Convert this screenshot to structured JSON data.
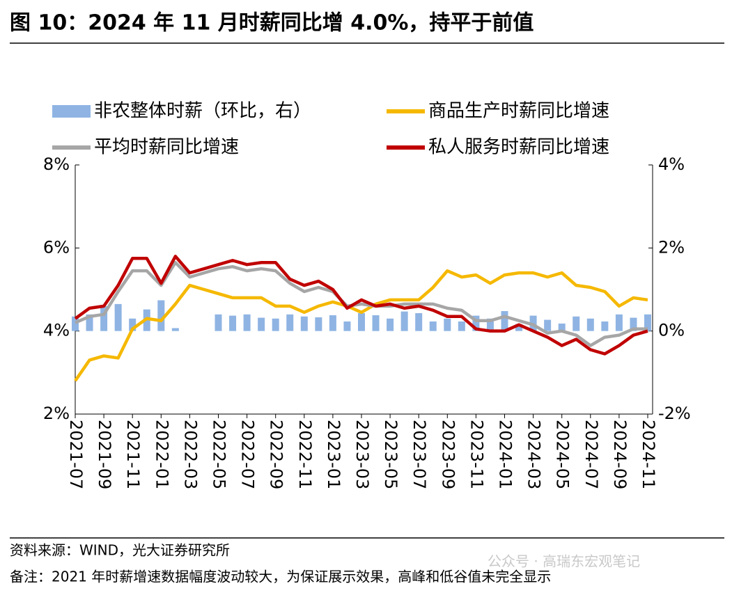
{
  "chart_data": {
    "type": "bar_line",
    "title": "图 10：2024 年 11 月时薪同比增 4.0%，持平于前值",
    "source": "资料来源：WIND，光大证券研究所",
    "note": "备注：2021 年时薪增速数据幅度波动较大，为保证展示效果，高峰和低谷值未完全显示",
    "watermark": "公众号 · 高瑞东宏观笔记",
    "categories": [
      "2021-07",
      null,
      "2021-09",
      null,
      "2021-11",
      null,
      "2022-01",
      null,
      "2022-03",
      null,
      "2022-05",
      null,
      "2022-07",
      null,
      "2022-09",
      null,
      "2022-11",
      null,
      "2023-01",
      null,
      "2023-03",
      null,
      "2023-05",
      null,
      "2023-07",
      null,
      "2023-09",
      null,
      "2023-11",
      null,
      "2024-01",
      null,
      "2024-03",
      null,
      "2024-05",
      null,
      "2024-07",
      null,
      "2024-09",
      null,
      "2024-11"
    ],
    "ylim": [
      2,
      8
    ],
    "yticks": [
      {
        "value": 2,
        "label": "2%"
      },
      {
        "value": 4,
        "label": "4%"
      },
      {
        "value": 6,
        "label": "6%"
      },
      {
        "value": 8,
        "label": "8%"
      }
    ],
    "y2lim": [
      -2,
      4
    ],
    "y2ticks": [
      {
        "value": -2,
        "label": "-2%"
      },
      {
        "value": 0,
        "label": "0%"
      },
      {
        "value": 2,
        "label": "2%"
      },
      {
        "value": 4,
        "label": "4%"
      }
    ],
    "series": [
      {
        "name": "非农整体时薪（环比，右）",
        "type": "bar",
        "axis": "y2",
        "color": "#8fb4e3",
        "values": [
          0.35,
          0.4,
          0.6,
          0.65,
          0.3,
          0.52,
          0.74,
          0.07,
          0,
          0,
          0.4,
          0.37,
          0.4,
          0.32,
          0.3,
          0.4,
          0.35,
          0.33,
          0.38,
          0.23,
          0.43,
          0.38,
          0.3,
          0.47,
          0.43,
          0.23,
          0.3,
          0.23,
          0.37,
          0.3,
          0.48,
          0.17,
          0.37,
          0.27,
          0.18,
          0.35,
          0.3,
          0.23,
          0.4,
          0.32,
          0.4
        ]
      },
      {
        "name": "商品生产时薪同比增速",
        "type": "line",
        "color": "#f5b800",
        "values": [
          2.8,
          3.3,
          3.4,
          3.35,
          4.05,
          4.3,
          4.25,
          4.65,
          5.1,
          5.0,
          4.9,
          4.8,
          4.8,
          4.8,
          4.6,
          4.6,
          4.45,
          4.6,
          4.7,
          4.6,
          4.45,
          4.65,
          4.75,
          4.75,
          4.75,
          5.05,
          5.45,
          5.3,
          5.35,
          5.15,
          5.35,
          5.4,
          5.4,
          5.3,
          5.4,
          5.1,
          5.05,
          4.95,
          4.6,
          4.8,
          4.75
        ]
      },
      {
        "name": "平均时薪同比增速",
        "type": "line",
        "color": "#a6a6a6",
        "values": [
          4.2,
          4.35,
          4.4,
          4.95,
          5.45,
          5.45,
          5.1,
          5.65,
          5.3,
          5.4,
          5.5,
          5.55,
          5.45,
          5.5,
          5.45,
          5.15,
          4.95,
          5.05,
          4.95,
          4.6,
          4.65,
          4.6,
          4.6,
          4.65,
          4.65,
          4.65,
          4.55,
          4.5,
          4.25,
          4.25,
          4.35,
          4.25,
          4.15,
          3.95,
          4.0,
          3.9,
          3.65,
          3.85,
          3.9,
          4.05,
          4.05
        ]
      },
      {
        "name": "私人服务时薪同比增速",
        "type": "line",
        "color": "#c00000",
        "values": [
          4.3,
          4.55,
          4.6,
          5.1,
          5.75,
          5.75,
          5.15,
          5.8,
          5.4,
          5.5,
          5.6,
          5.7,
          5.6,
          5.65,
          5.65,
          5.25,
          5.1,
          5.2,
          5.0,
          4.55,
          4.75,
          4.6,
          4.65,
          4.55,
          4.6,
          4.5,
          4.35,
          4.35,
          4.05,
          4.0,
          4.0,
          4.15,
          4.0,
          3.85,
          3.65,
          3.8,
          3.55,
          3.45,
          3.65,
          3.9,
          4.0
        ]
      }
    ]
  }
}
